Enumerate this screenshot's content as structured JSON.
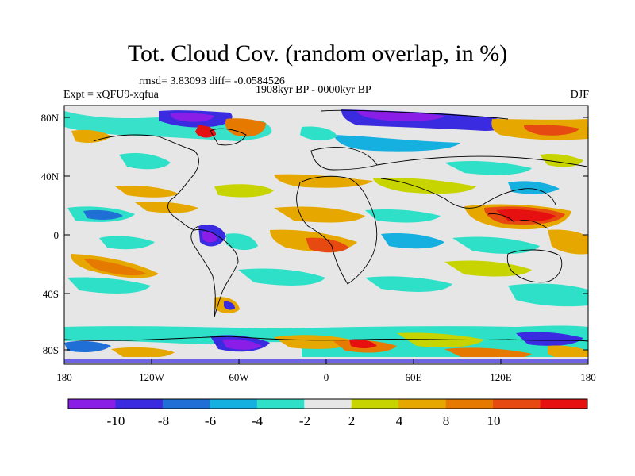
{
  "title": "Tot. Cloud Cov. (random overlap, in %)",
  "stats_line": "rmsd= 3.83093 diff= -0.0584526",
  "period_line": "1908kyr BP - 0000kyr BP",
  "experiment": "Expt = xQFU9-xqfua",
  "season": "DJF",
  "map": {
    "lat_labels": [
      "80N",
      "40N",
      "0",
      "40S",
      "80S"
    ],
    "lon_labels": [
      "180",
      "120W",
      "60W",
      "0",
      "60E",
      "120E",
      "180"
    ],
    "background_color": "#e6e6e6",
    "coastline_color": "#000000"
  },
  "colorbar": {
    "colors": [
      "#8a1ee6",
      "#3b2be0",
      "#1f6fd6",
      "#16b0e0",
      "#2ee0c8",
      "#e6e6e6",
      "#c8d400",
      "#e6a800",
      "#e67a00",
      "#e64a10",
      "#e61010"
    ],
    "labels": [
      "-10",
      "-8",
      "-6",
      "-4",
      "-2",
      "2",
      "4",
      "8",
      "10"
    ]
  }
}
